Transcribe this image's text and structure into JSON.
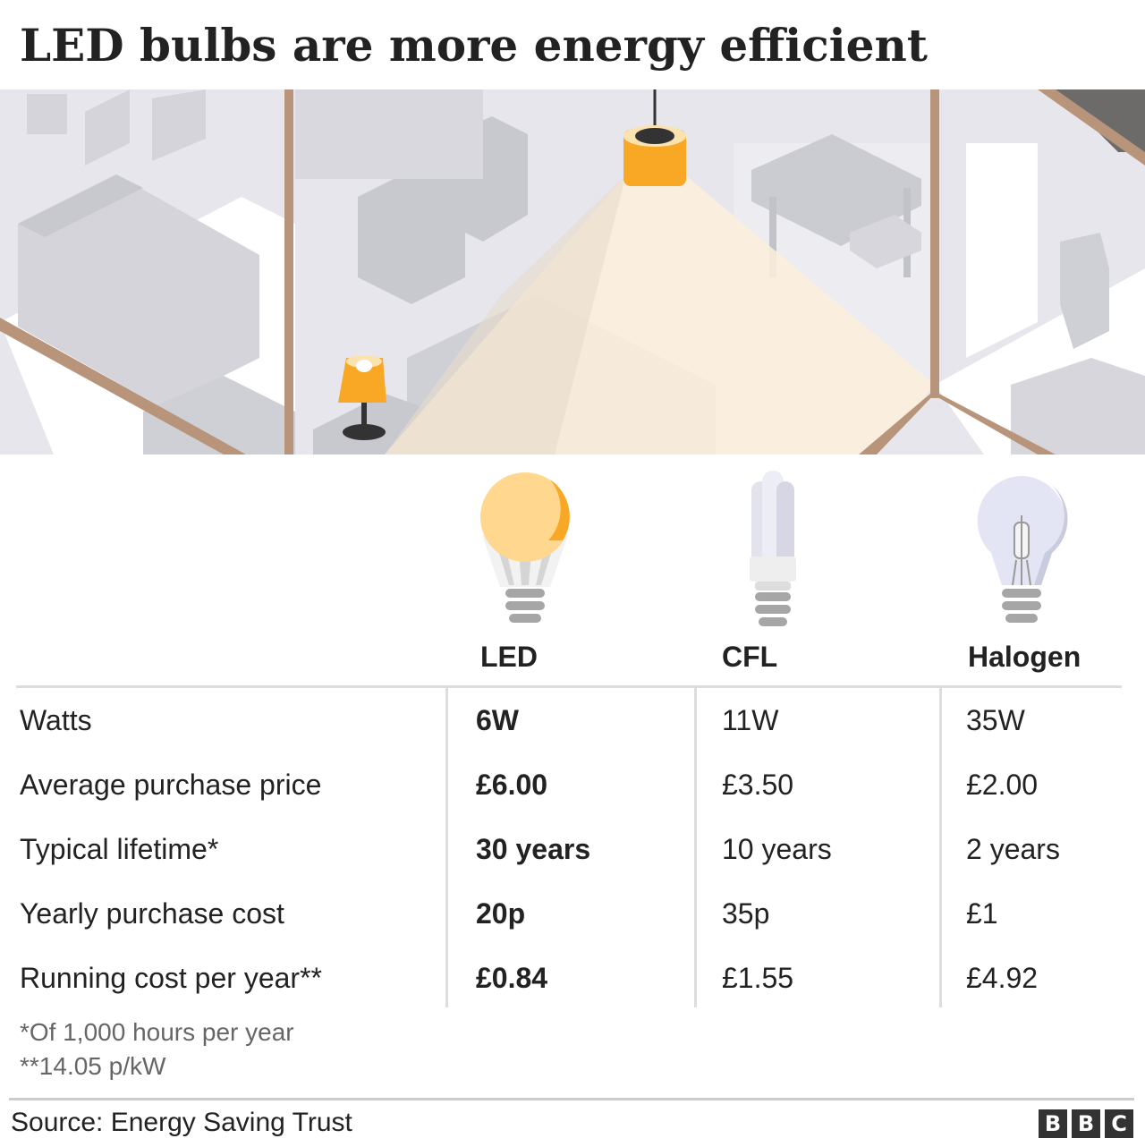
{
  "title": "LED bulbs are more energy efficient",
  "columns": [
    {
      "label": "LED",
      "icon": "led-bulb-icon"
    },
    {
      "label": "CFL",
      "icon": "cfl-bulb-icon"
    },
    {
      "label": "Halogen",
      "icon": "halogen-bulb-icon"
    }
  ],
  "rows": [
    {
      "label": "Watts",
      "led": "6W",
      "cfl": "11W",
      "halogen": "35W"
    },
    {
      "label": "Average purchase price",
      "led": "£6.00",
      "cfl": "£3.50",
      "halogen": "£2.00"
    },
    {
      "label": "Typical lifetime*",
      "led": "30 years",
      "cfl": "10 years",
      "halogen": "2 years"
    },
    {
      "label": "Yearly purchase cost",
      "led": "20p",
      "cfl": "35p",
      "halogen": "£1"
    },
    {
      "label": "Running cost per year**",
      "led": "£0.84",
      "cfl": "£1.55",
      "halogen": "£4.92"
    }
  ],
  "notes": [
    "*Of 1,000 hours per year",
    "**14.05 p/kW"
  ],
  "source": "Source: Energy Saving Trust",
  "logo": {
    "letters": [
      "B",
      "B",
      "C"
    ]
  },
  "colors": {
    "accent": "#f9a825",
    "room": "#e4e4ea",
    "wall_trim": "#b8957a",
    "light_cone": "#fdf0dc"
  }
}
